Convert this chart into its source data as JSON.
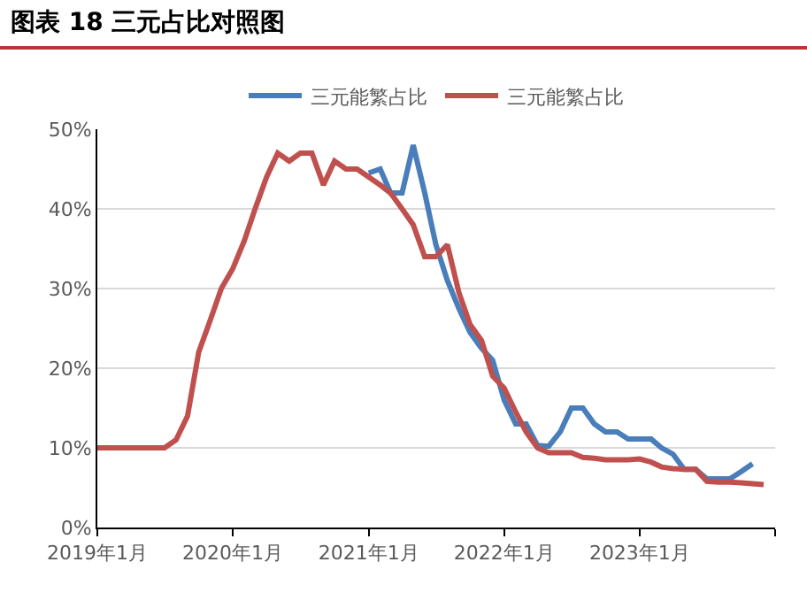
{
  "chart_data": {
    "type": "line",
    "title": "图表 18  三元占比对照图",
    "series": [
      {
        "name": "三元能繁占比",
        "color": "#4a7ebb",
        "x": [
          "2021-01",
          "2021-02",
          "2021-03",
          "2021-04",
          "2021-05",
          "2021-06",
          "2021-07",
          "2021-08",
          "2021-09",
          "2021-10",
          "2021-11",
          "2021-12",
          "2022-01",
          "2022-02",
          "2022-03",
          "2022-04",
          "2022-05",
          "2022-06",
          "2022-07",
          "2022-08",
          "2022-09",
          "2022-10",
          "2022-11",
          "2022-12",
          "2023-01",
          "2023-02",
          "2023-03",
          "2023-04",
          "2023-05",
          "2023-06",
          "2023-07",
          "2023-08",
          "2023-09",
          "2023-10",
          "2023-11"
        ],
        "values": [
          44.5,
          45,
          42,
          42,
          48,
          42,
          35.5,
          31,
          27.5,
          24.5,
          22.5,
          21,
          16,
          13,
          13,
          10.3,
          10.2,
          12,
          15,
          15,
          13,
          12,
          12,
          11.1,
          11.1,
          11.1,
          10,
          9.2,
          7.3,
          7.3,
          6.1,
          6.1,
          6.1,
          7,
          8
        ]
      },
      {
        "name": "三元能繁占比",
        "color": "#c0504d",
        "x": [
          "2019-01",
          "2019-02",
          "2019-03",
          "2019-04",
          "2019-05",
          "2019-06",
          "2019-07",
          "2019-08",
          "2019-09",
          "2019-10",
          "2019-11",
          "2019-12",
          "2020-01",
          "2020-02",
          "2020-03",
          "2020-04",
          "2020-05",
          "2020-06",
          "2020-07",
          "2020-08",
          "2020-09",
          "2020-10",
          "2020-11",
          "2020-12",
          "2021-01",
          "2021-02",
          "2021-03",
          "2021-04",
          "2021-05",
          "2021-06",
          "2021-07",
          "2021-08",
          "2021-09",
          "2021-10",
          "2021-11",
          "2021-12",
          "2022-01",
          "2022-02",
          "2022-03",
          "2022-04",
          "2022-05",
          "2022-06",
          "2022-07",
          "2022-08",
          "2022-09",
          "2022-10",
          "2022-11",
          "2022-12",
          "2023-01",
          "2023-02",
          "2023-03",
          "2023-04",
          "2023-05",
          "2023-06",
          "2023-07",
          "2023-08",
          "2023-09",
          "2023-10",
          "2023-11",
          "2023-12"
        ],
        "values": [
          10,
          10,
          10,
          10,
          10,
          10,
          10,
          11,
          14,
          22,
          26,
          30,
          32.5,
          36,
          40,
          44,
          47,
          46,
          47,
          47,
          43,
          46,
          45,
          45,
          44,
          43,
          42,
          40,
          38,
          34,
          34,
          35.5,
          29.5,
          25.5,
          23.5,
          19,
          17.5,
          14.5,
          12,
          10,
          9.4,
          9.4,
          9.4,
          8.8,
          8.7,
          8.5,
          8.5,
          8.5,
          8.6,
          8.2,
          7.6,
          7.4,
          7.3,
          7.3,
          5.8,
          5.7,
          5.7,
          5.6,
          5.5,
          5.4
        ]
      }
    ],
    "xlim": [
      "2019-01",
      "2024-01"
    ],
    "xticks": [
      {
        "value": "2019-01",
        "label": "2019年1月"
      },
      {
        "value": "2020-01",
        "label": "2020年1月"
      },
      {
        "value": "2021-01",
        "label": "2021年1月"
      },
      {
        "value": "2022-01",
        "label": "2022年1月"
      },
      {
        "value": "2023-01",
        "label": "2023年1月"
      },
      {
        "value": "2024-01",
        "label": null
      }
    ],
    "ylim": [
      0,
      50
    ],
    "yticks": [
      {
        "value": 0,
        "label": "0%"
      },
      {
        "value": 10,
        "label": "10%"
      },
      {
        "value": 20,
        "label": "20%"
      },
      {
        "value": 30,
        "label": "30%"
      },
      {
        "value": 40,
        "label": "40%"
      },
      {
        "value": 50,
        "label": "50%"
      }
    ],
    "grid": "y",
    "legend": "top",
    "marker": "none",
    "line_style": "solid"
  }
}
